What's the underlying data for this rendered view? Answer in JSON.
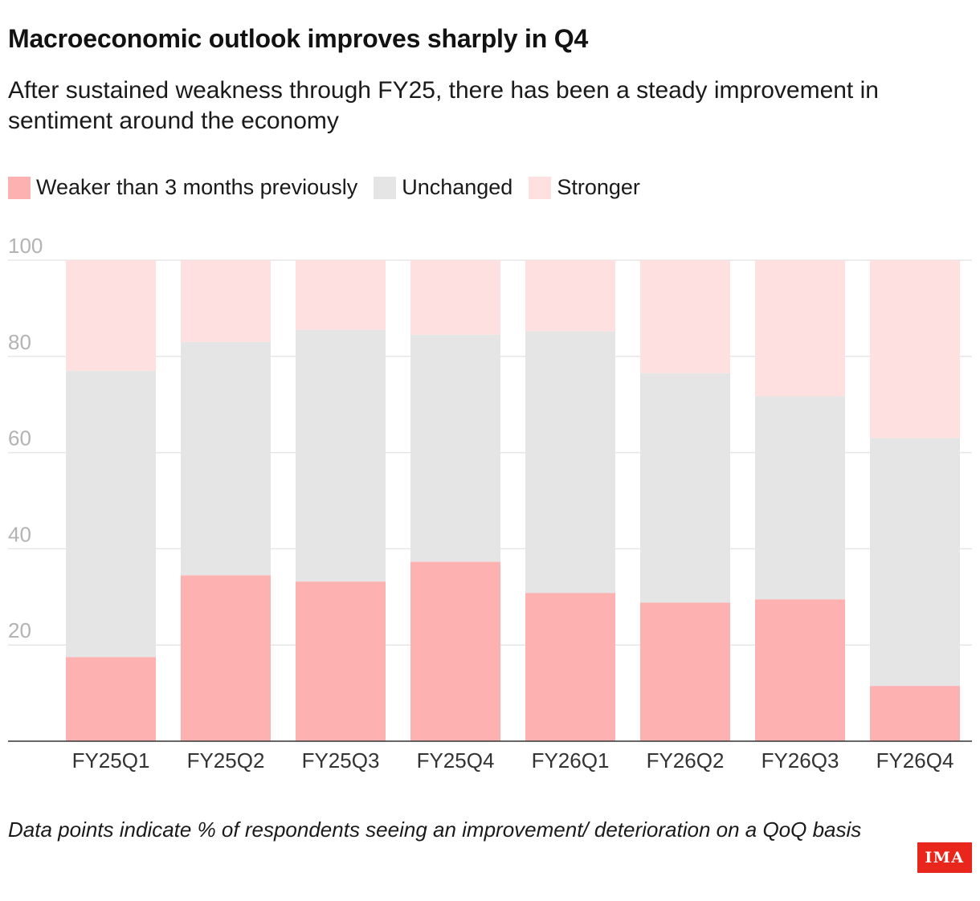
{
  "title": "Macroeconomic outlook improves sharply in Q4",
  "subtitle": "After sustained weakness through FY25, there has been a steady improvement in sentiment around the economy",
  "legend": [
    {
      "label": "Weaker than 3 months previously",
      "color": "#feb1b1"
    },
    {
      "label": "Unchanged",
      "color": "#e5e5e5"
    },
    {
      "label": "Stronger",
      "color": "#fee0e0"
    }
  ],
  "footnote": "Data points indicate % of respondents seeing an improvement/ deterioration on a QoQ basis",
  "logo_text": "IMA",
  "chart_data": {
    "type": "bar",
    "stacked": true,
    "categories": [
      "FY25Q1",
      "FY25Q2",
      "FY25Q3",
      "FY25Q4",
      "FY26Q1",
      "FY26Q2",
      "FY26Q3",
      "FY26Q4"
    ],
    "series": [
      {
        "name": "Weaker than 3 months previously",
        "color": "#feb1b1",
        "values": [
          17.5,
          34.5,
          33.2,
          37.3,
          30.8,
          28.8,
          29.5,
          11.5
        ]
      },
      {
        "name": "Unchanged",
        "color": "#e5e5e5",
        "values": [
          59.5,
          48.5,
          52.3,
          47.2,
          54.4,
          47.7,
          42.2,
          51.5
        ]
      },
      {
        "name": "Stronger",
        "color": "#fee0e0",
        "values": [
          23.0,
          17.0,
          14.5,
          15.5,
          14.8,
          23.5,
          28.3,
          37.0
        ]
      }
    ],
    "ylim": [
      0,
      100
    ],
    "yticks": [
      20,
      40,
      60,
      80,
      100
    ],
    "grid": true,
    "xlabel": "",
    "ylabel": "",
    "legend_position": "top-left"
  }
}
